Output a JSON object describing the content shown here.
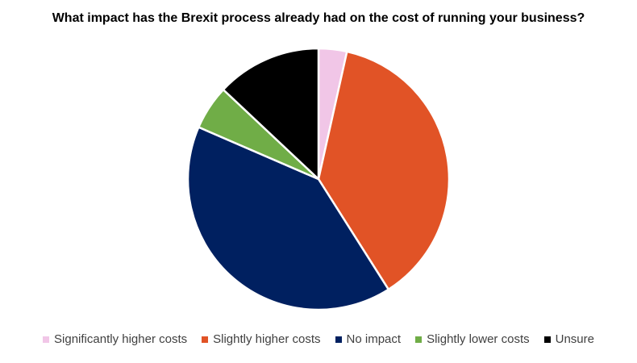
{
  "chart_data": {
    "type": "pie",
    "title": "What impact has the Brexit process already had on the cost of running your business?",
    "legend_position": "bottom",
    "slices": [
      {
        "label": "Significantly higher costs",
        "value": 3.5,
        "color": "#F1C6E7"
      },
      {
        "label": "Slightly higher costs",
        "value": 37.5,
        "color": "#E15326"
      },
      {
        "label": "No impact",
        "value": 40.5,
        "color": "#002060"
      },
      {
        "label": "Slightly lower costs",
        "value": 5.5,
        "color": "#70AD47"
      },
      {
        "label": "Unsure",
        "value": 13.0,
        "color": "#000000"
      }
    ]
  }
}
